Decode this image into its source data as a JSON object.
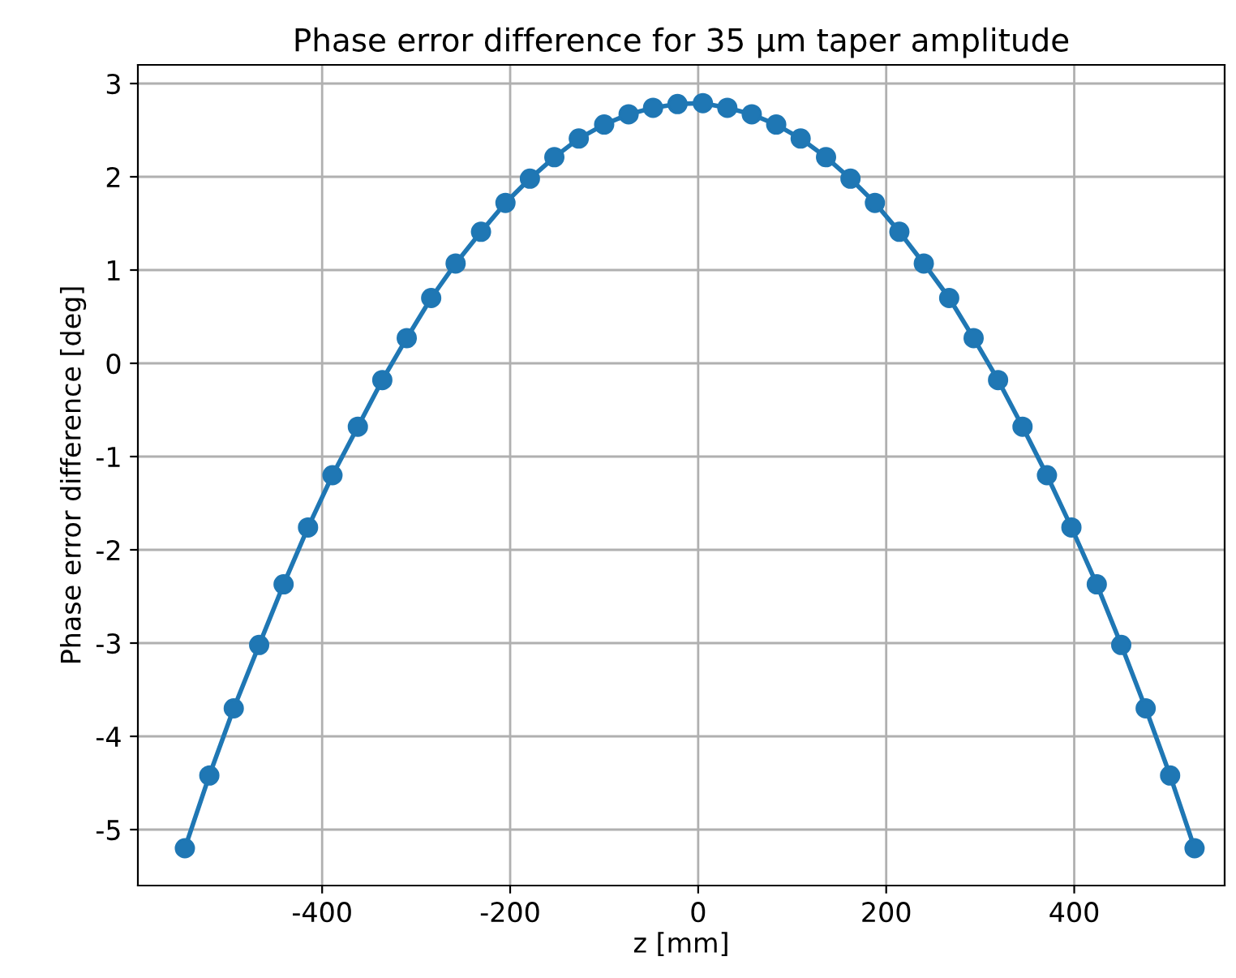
{
  "chart_data": {
    "type": "line",
    "title": "Phase error difference for 35 μm taper amplitude",
    "xlabel": "z [mm]",
    "ylabel": "Phase error difference [deg]",
    "x": [
      -546,
      -520,
      -494,
      -467,
      -441,
      -415,
      -389,
      -362,
      -336,
      -310,
      -284,
      -258,
      -231,
      -205,
      -179,
      -153,
      -127,
      -100,
      -74,
      -48,
      -22,
      5,
      31,
      57,
      83,
      109,
      136,
      162,
      188,
      214,
      240,
      267,
      293,
      319,
      345,
      371,
      397,
      424,
      450,
      476,
      502,
      528
    ],
    "series": [
      {
        "color": "#1f77b4",
        "values": [
          -5.2,
          -4.42,
          -3.7,
          -3.02,
          -2.37,
          -1.76,
          -1.2,
          -0.68,
          -0.18,
          0.27,
          0.7,
          1.07,
          1.41,
          1.72,
          1.98,
          2.21,
          2.41,
          2.56,
          2.67,
          2.74,
          2.78,
          2.79,
          2.74,
          2.67,
          2.56,
          2.41,
          2.21,
          1.98,
          1.72,
          1.41,
          1.07,
          0.7,
          0.27,
          -0.18,
          -0.68,
          -1.2,
          -1.76,
          -2.37,
          -3.02,
          -3.7,
          -4.42,
          -5.2
        ]
      }
    ],
    "xlim": [
      -596,
      560
    ],
    "ylim": [
      -5.6,
      3.2
    ],
    "xticks": [
      -400,
      -200,
      0,
      200,
      400
    ],
    "yticks": [
      -5,
      -4,
      -3,
      -2,
      -1,
      0,
      1,
      2,
      3
    ],
    "grid": true,
    "marker": "circle",
    "line_style": "solid",
    "legend": false
  }
}
